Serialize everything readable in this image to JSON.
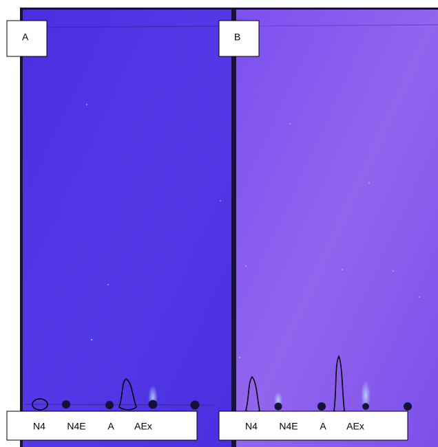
{
  "panels": [
    {
      "label": "A",
      "lanes": [
        "N4",
        "N4E",
        "A",
        "AEx"
      ]
    },
    {
      "label": "B",
      "lanes": [
        "N4",
        "N4E",
        "A",
        "AEx"
      ]
    }
  ]
}
